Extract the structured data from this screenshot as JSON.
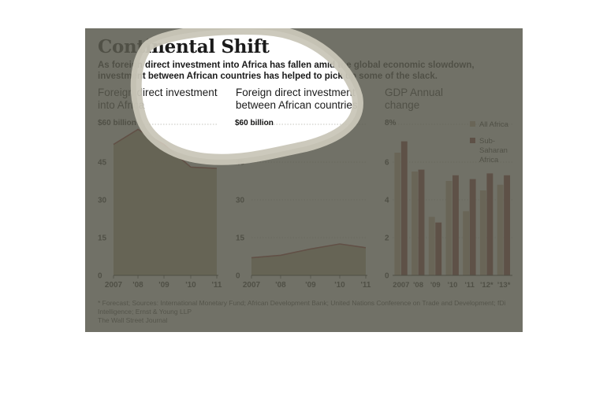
{
  "header": {
    "title": "Continental Shift",
    "deck": "As foreign direct investment into Africa has fallen amid the global economic slowdown, investment between African countries has helped to pick up some of the slack."
  },
  "colors": {
    "area_fill": "#a69a73",
    "line": "#8b1a1a",
    "bar_africa": "#c6ab8d",
    "bar_ssa": "#7a1f1f",
    "grid": "#8a8a7a",
    "overlay": "#5a5a4e",
    "spot_ring": "#c9c6b8"
  },
  "chart_data": [
    {
      "type": "area",
      "title": "Foreign direct investment into Africa",
      "ylabel": "$60 billion",
      "categories": [
        "2007",
        "'08",
        "'09",
        "'10",
        "'11"
      ],
      "values": [
        52,
        58,
        52,
        43,
        42.5
      ],
      "ylim": [
        0,
        60
      ],
      "yticks": [
        "",
        "45",
        "30",
        "15",
        "0"
      ],
      "grid": true
    },
    {
      "type": "area",
      "title": "Foreign direct investment between African countries",
      "ylabel": "$60 billion",
      "categories": [
        "2007",
        "'08",
        "'09",
        "'10",
        "'11"
      ],
      "values": [
        7,
        8,
        10.5,
        12.5,
        11
      ],
      "ylim": [
        0,
        60
      ],
      "yticks": [
        "",
        "45",
        "30",
        "15",
        "0"
      ],
      "grid": true
    },
    {
      "type": "bar",
      "title": "GDP Annual change",
      "ylabel": "8%",
      "categories": [
        "2007",
        "'08",
        "'09",
        "'10",
        "'11",
        "'12*",
        "'13*"
      ],
      "series": [
        {
          "name": "All Africa",
          "values": [
            6.5,
            5.5,
            3.1,
            5.0,
            3.4,
            4.5,
            4.8
          ]
        },
        {
          "name": "Sub-Saharan Africa",
          "values": [
            7.1,
            5.6,
            2.8,
            5.3,
            5.1,
            5.4,
            5.3
          ]
        }
      ],
      "ylim": [
        0,
        8
      ],
      "yticks": [
        "",
        "6",
        "4",
        "2",
        "0"
      ],
      "legend": "top-right",
      "grid": true
    }
  ],
  "footer": {
    "note": "* Forecast; Sources: International Monetary Fund; African Development Bank; United Nations Conference on Trade and Development; fDi Intelligence; Ernst & Young LLP",
    "credit": "The Wall Street Journal"
  }
}
